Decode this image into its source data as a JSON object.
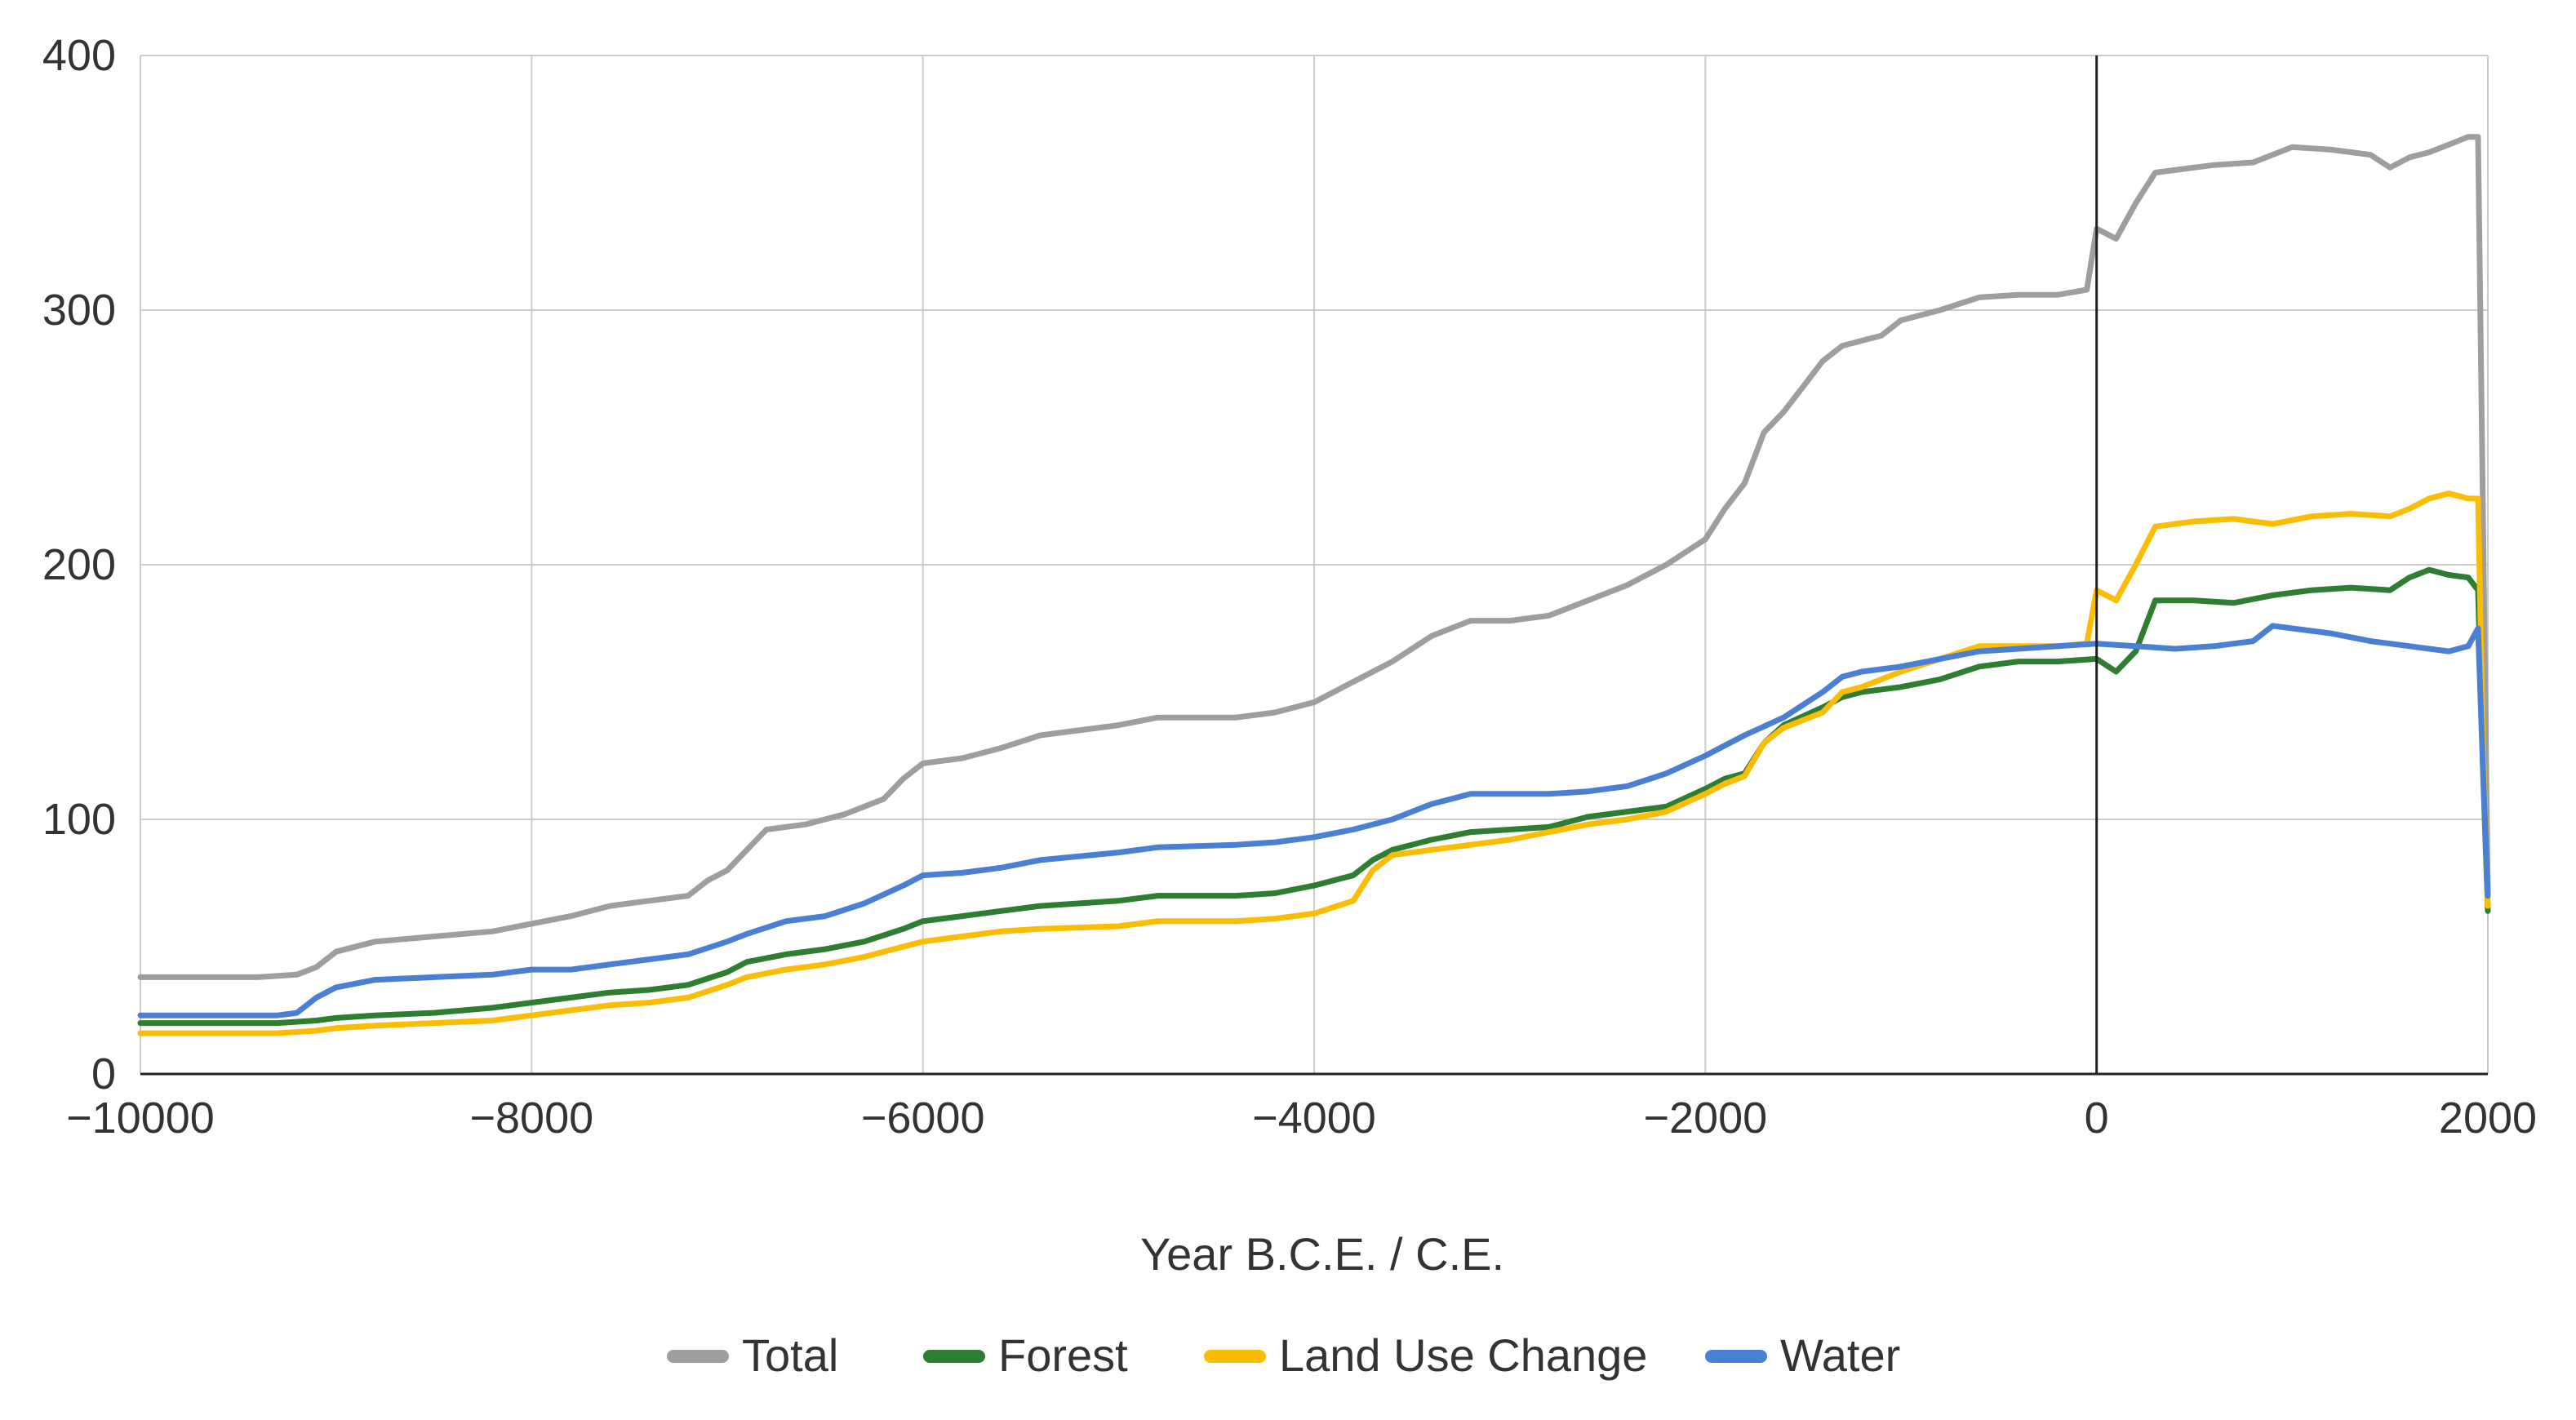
{
  "chart_data": {
    "type": "line",
    "title": "",
    "xlabel": "Year B.C.E. / C.E.",
    "ylabel": "",
    "xlim": [
      -10000,
      2000
    ],
    "ylim": [
      0,
      400
    ],
    "x_ticks": [
      -10000,
      -8000,
      -6000,
      -4000,
      -2000,
      0,
      2000
    ],
    "x_tick_labels": [
      "−10000",
      "−8000",
      "−6000",
      "−4000",
      "−2000",
      "0",
      "2000"
    ],
    "y_ticks": [
      0,
      100,
      200,
      300,
      400
    ],
    "y_tick_labels": [
      "0",
      "100",
      "200",
      "300",
      "400"
    ],
    "grid": true,
    "legend_position": "bottom",
    "series": [
      {
        "name": "Total",
        "color": "#9e9e9e",
        "points": [
          [
            -10000,
            38
          ],
          [
            -9400,
            38
          ],
          [
            -9200,
            39
          ],
          [
            -9100,
            42
          ],
          [
            -9000,
            48
          ],
          [
            -8800,
            52
          ],
          [
            -8500,
            54
          ],
          [
            -8200,
            56
          ],
          [
            -8000,
            59
          ],
          [
            -7800,
            62
          ],
          [
            -7600,
            66
          ],
          [
            -7400,
            68
          ],
          [
            -7200,
            70
          ],
          [
            -7100,
            76
          ],
          [
            -7000,
            80
          ],
          [
            -6900,
            88
          ],
          [
            -6800,
            96
          ],
          [
            -6600,
            98
          ],
          [
            -6400,
            102
          ],
          [
            -6200,
            108
          ],
          [
            -6100,
            116
          ],
          [
            -6000,
            122
          ],
          [
            -5800,
            124
          ],
          [
            -5600,
            128
          ],
          [
            -5400,
            133
          ],
          [
            -5000,
            137
          ],
          [
            -4800,
            140
          ],
          [
            -4400,
            140
          ],
          [
            -4200,
            142
          ],
          [
            -4000,
            146
          ],
          [
            -3800,
            154
          ],
          [
            -3600,
            162
          ],
          [
            -3400,
            172
          ],
          [
            -3200,
            178
          ],
          [
            -3000,
            178
          ],
          [
            -2800,
            180
          ],
          [
            -2600,
            186
          ],
          [
            -2400,
            192
          ],
          [
            -2200,
            200
          ],
          [
            -2000,
            210
          ],
          [
            -1900,
            222
          ],
          [
            -1800,
            232
          ],
          [
            -1700,
            252
          ],
          [
            -1600,
            260
          ],
          [
            -1500,
            270
          ],
          [
            -1400,
            280
          ],
          [
            -1300,
            286
          ],
          [
            -1100,
            290
          ],
          [
            -1000,
            296
          ],
          [
            -800,
            300
          ],
          [
            -600,
            305
          ],
          [
            -400,
            306
          ],
          [
            -200,
            306
          ],
          [
            -50,
            308
          ],
          [
            0,
            332
          ],
          [
            100,
            328
          ],
          [
            200,
            342
          ],
          [
            300,
            354
          ],
          [
            400,
            355
          ],
          [
            600,
            357
          ],
          [
            800,
            358
          ],
          [
            1000,
            364
          ],
          [
            1200,
            363
          ],
          [
            1400,
            361
          ],
          [
            1500,
            356
          ],
          [
            1600,
            360
          ],
          [
            1700,
            362
          ],
          [
            1800,
            365
          ],
          [
            1900,
            368
          ],
          [
            1950,
            368
          ],
          [
            1975,
            220
          ],
          [
            2000,
            70
          ]
        ]
      },
      {
        "name": "Forest",
        "color": "#2e7d32",
        "points": [
          [
            -10000,
            20
          ],
          [
            -9300,
            20
          ],
          [
            -9100,
            21
          ],
          [
            -9000,
            22
          ],
          [
            -8800,
            23
          ],
          [
            -8500,
            24
          ],
          [
            -8200,
            26
          ],
          [
            -8000,
            28
          ],
          [
            -7800,
            30
          ],
          [
            -7600,
            32
          ],
          [
            -7400,
            33
          ],
          [
            -7200,
            35
          ],
          [
            -7000,
            40
          ],
          [
            -6900,
            44
          ],
          [
            -6700,
            47
          ],
          [
            -6500,
            49
          ],
          [
            -6300,
            52
          ],
          [
            -6100,
            57
          ],
          [
            -6000,
            60
          ],
          [
            -5800,
            62
          ],
          [
            -5600,
            64
          ],
          [
            -5400,
            66
          ],
          [
            -5000,
            68
          ],
          [
            -4800,
            70
          ],
          [
            -4400,
            70
          ],
          [
            -4200,
            71
          ],
          [
            -4000,
            74
          ],
          [
            -3800,
            78
          ],
          [
            -3700,
            84
          ],
          [
            -3600,
            88
          ],
          [
            -3400,
            92
          ],
          [
            -3200,
            95
          ],
          [
            -3000,
            96
          ],
          [
            -2800,
            97
          ],
          [
            -2600,
            101
          ],
          [
            -2400,
            103
          ],
          [
            -2200,
            105
          ],
          [
            -2000,
            112
          ],
          [
            -1900,
            116
          ],
          [
            -1800,
            118
          ],
          [
            -1700,
            130
          ],
          [
            -1600,
            137
          ],
          [
            -1400,
            144
          ],
          [
            -1300,
            148
          ],
          [
            -1200,
            150
          ],
          [
            -1000,
            152
          ],
          [
            -800,
            155
          ],
          [
            -600,
            160
          ],
          [
            -400,
            162
          ],
          [
            -200,
            162
          ],
          [
            0,
            163
          ],
          [
            100,
            158
          ],
          [
            200,
            166
          ],
          [
            300,
            186
          ],
          [
            500,
            186
          ],
          [
            700,
            185
          ],
          [
            900,
            188
          ],
          [
            1100,
            190
          ],
          [
            1300,
            191
          ],
          [
            1500,
            190
          ],
          [
            1600,
            195
          ],
          [
            1700,
            198
          ],
          [
            1800,
            196
          ],
          [
            1900,
            195
          ],
          [
            1950,
            190
          ],
          [
            1975,
            120
          ],
          [
            2000,
            64
          ]
        ]
      },
      {
        "name": "Land Use Change",
        "color": "#fbbc04",
        "points": [
          [
            -10000,
            16
          ],
          [
            -9300,
            16
          ],
          [
            -9100,
            17
          ],
          [
            -9000,
            18
          ],
          [
            -8800,
            19
          ],
          [
            -8500,
            20
          ],
          [
            -8200,
            21
          ],
          [
            -8000,
            23
          ],
          [
            -7800,
            25
          ],
          [
            -7600,
            27
          ],
          [
            -7400,
            28
          ],
          [
            -7200,
            30
          ],
          [
            -7000,
            35
          ],
          [
            -6900,
            38
          ],
          [
            -6700,
            41
          ],
          [
            -6500,
            43
          ],
          [
            -6300,
            46
          ],
          [
            -6100,
            50
          ],
          [
            -6000,
            52
          ],
          [
            -5800,
            54
          ],
          [
            -5600,
            56
          ],
          [
            -5400,
            57
          ],
          [
            -5000,
            58
          ],
          [
            -4800,
            60
          ],
          [
            -4400,
            60
          ],
          [
            -4200,
            61
          ],
          [
            -4000,
            63
          ],
          [
            -3800,
            68
          ],
          [
            -3700,
            80
          ],
          [
            -3600,
            86
          ],
          [
            -3400,
            88
          ],
          [
            -3200,
            90
          ],
          [
            -3000,
            92
          ],
          [
            -2800,
            95
          ],
          [
            -2600,
            98
          ],
          [
            -2400,
            100
          ],
          [
            -2200,
            103
          ],
          [
            -2000,
            110
          ],
          [
            -1900,
            114
          ],
          [
            -1800,
            117
          ],
          [
            -1700,
            130
          ],
          [
            -1600,
            136
          ],
          [
            -1400,
            142
          ],
          [
            -1300,
            150
          ],
          [
            -1200,
            152
          ],
          [
            -1000,
            158
          ],
          [
            -800,
            163
          ],
          [
            -600,
            168
          ],
          [
            -400,
            168
          ],
          [
            -200,
            168
          ],
          [
            -50,
            169
          ],
          [
            0,
            190
          ],
          [
            100,
            186
          ],
          [
            200,
            200
          ],
          [
            300,
            215
          ],
          [
            500,
            217
          ],
          [
            700,
            218
          ],
          [
            900,
            216
          ],
          [
            1100,
            219
          ],
          [
            1300,
            220
          ],
          [
            1500,
            219
          ],
          [
            1600,
            222
          ],
          [
            1700,
            226
          ],
          [
            1800,
            228
          ],
          [
            1900,
            226
          ],
          [
            1950,
            226
          ],
          [
            1975,
            130
          ],
          [
            2000,
            66
          ]
        ]
      },
      {
        "name": "Water",
        "color": "#4a7fd4",
        "points": [
          [
            -10000,
            23
          ],
          [
            -9300,
            23
          ],
          [
            -9200,
            24
          ],
          [
            -9100,
            30
          ],
          [
            -9000,
            34
          ],
          [
            -8800,
            37
          ],
          [
            -8500,
            38
          ],
          [
            -8200,
            39
          ],
          [
            -8000,
            41
          ],
          [
            -7800,
            41
          ],
          [
            -7600,
            43
          ],
          [
            -7400,
            45
          ],
          [
            -7200,
            47
          ],
          [
            -7000,
            52
          ],
          [
            -6900,
            55
          ],
          [
            -6700,
            60
          ],
          [
            -6500,
            62
          ],
          [
            -6300,
            67
          ],
          [
            -6100,
            74
          ],
          [
            -6000,
            78
          ],
          [
            -5800,
            79
          ],
          [
            -5600,
            81
          ],
          [
            -5400,
            84
          ],
          [
            -5000,
            87
          ],
          [
            -4800,
            89
          ],
          [
            -4400,
            90
          ],
          [
            -4200,
            91
          ],
          [
            -4000,
            93
          ],
          [
            -3800,
            96
          ],
          [
            -3600,
            100
          ],
          [
            -3400,
            106
          ],
          [
            -3200,
            110
          ],
          [
            -3000,
            110
          ],
          [
            -2800,
            110
          ],
          [
            -2600,
            111
          ],
          [
            -2400,
            113
          ],
          [
            -2200,
            118
          ],
          [
            -2000,
            125
          ],
          [
            -1800,
            133
          ],
          [
            -1600,
            140
          ],
          [
            -1400,
            150
          ],
          [
            -1300,
            156
          ],
          [
            -1200,
            158
          ],
          [
            -1000,
            160
          ],
          [
            -800,
            163
          ],
          [
            -600,
            166
          ],
          [
            -400,
            167
          ],
          [
            -200,
            168
          ],
          [
            0,
            169
          ],
          [
            200,
            168
          ],
          [
            400,
            167
          ],
          [
            600,
            168
          ],
          [
            800,
            170
          ],
          [
            900,
            176
          ],
          [
            1000,
            175
          ],
          [
            1200,
            173
          ],
          [
            1400,
            170
          ],
          [
            1600,
            168
          ],
          [
            1800,
            166
          ],
          [
            1900,
            168
          ],
          [
            1950,
            175
          ],
          [
            1975,
            120
          ],
          [
            2000,
            70
          ]
        ]
      }
    ]
  }
}
